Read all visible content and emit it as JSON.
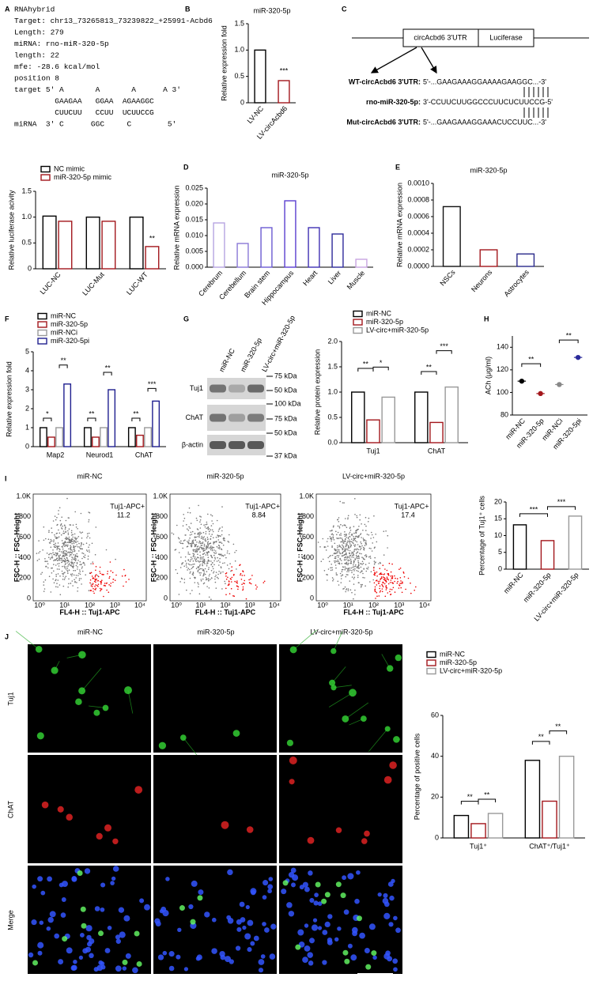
{
  "panel_labels": [
    "A",
    "B",
    "C",
    "D",
    "E",
    "F",
    "G",
    "H",
    "I",
    "J"
  ],
  "rnahybrid": {
    "lines": [
      "RNAhybrid",
      "Target: chr13_73265813_73239822_+25991-Acbd6",
      "Length: 279",
      "miRNA: rno-miR-320-5p",
      "length: 22",
      "mfe: -28.6 kcal/mol",
      "position 8",
      "target 5' A       A       A      A 3'",
      "         GAAGAA   GGAA  AGAAGGC",
      "         CUUCUU   CCUU  UCUUCCG",
      "miRNA  3' C      GGC     C        5'"
    ]
  },
  "construct": {
    "utr_box": "circAcbd6 3'UTR",
    "luc_box": "Luciferase",
    "rows": [
      {
        "label": "WT-circAcbd6 3'UTR:",
        "seq": "5'-...GAAGAAAGGAAAAGAAGGC...-3'"
      },
      {
        "label": "rno-miR-320-5p:",
        "seq": "3'-CCUUCUUGGCCCUUCUCUUCCG-5'"
      },
      {
        "label": "Mut-circAcbd6 3'UTR:",
        "seq": "5'-...GAAGAAAGGAAACUCCUUC...-3'"
      }
    ]
  },
  "blot": {
    "lanes": [
      "miR-NC",
      "miR-320-5p",
      "LV-circ+miR-320-5p"
    ],
    "rows": [
      "Tuj1",
      "ChAT",
      "β-actin"
    ],
    "markers": [
      "75 kDa",
      "50 kDa",
      "100 kDa",
      "75 kDa",
      "50 kDa",
      "37 kDa"
    ]
  },
  "flow": {
    "panels": [
      {
        "title": "miR-NC",
        "gate": "Tuj1-APC+",
        "percent": 11.2
      },
      {
        "title": "miR-320-5p",
        "gate": "Tuj1-APC+",
        "percent": 8.84
      },
      {
        "title": "LV-circ+miR-320-5p",
        "gate": "Tuj1-APC+",
        "percent": 17.4
      }
    ],
    "ylabel": "FSC-H :: FSC-Height",
    "xlabel": "FL4-H :: Tuj1-APC",
    "yticks": [
      "1.0K",
      "800",
      "600",
      "400",
      "200",
      "0"
    ],
    "xticks": [
      "10⁰",
      "10¹",
      "10²",
      "10³",
      "10⁴"
    ]
  },
  "micrographs": {
    "columns": [
      "miR-NC",
      "miR-320-5p",
      "LV-circ+miR-320-5p"
    ],
    "rows": [
      "Tuj1",
      "ChAT",
      "Merge"
    ]
  },
  "chart_data": [
    {
      "type": "bar",
      "title": "miR-320-5p",
      "ylabel": "Relative expression fold",
      "categories": [
        "LV-NC",
        "LV-circAcbd6"
      ],
      "values": [
        1.0,
        0.42
      ],
      "colors": [
        "#000000",
        "#a3171c"
      ],
      "ylim": [
        0,
        1.5
      ],
      "yticks": [
        0,
        0.5,
        {
          "value": 1,
          "label": "1.0"
        },
        1.5
      ],
      "annotations": [
        "***"
      ]
    },
    {
      "type": "bar",
      "ylabel": "Relative luciferase acivity",
      "categories": [
        "LUC-NC",
        "LUC-Mut",
        "LUC-WT"
      ],
      "series": [
        {
          "name": "NC mimic",
          "color": "#000000",
          "values": [
            1.02,
            1.0,
            1.0
          ]
        },
        {
          "name": "miR-320-5p mimic",
          "color": "#a3171c",
          "values": [
            0.92,
            0.92,
            0.43
          ]
        }
      ],
      "ylim": [
        0,
        1.5
      ],
      "yticks": [
        0,
        0.5,
        {
          "value": 1,
          "label": "1.0"
        },
        1.5
      ],
      "annotations": [
        "**"
      ]
    },
    {
      "type": "bar",
      "title": "miR-320-5p",
      "ylabel": "Relative mRNA expression",
      "categories": [
        "Cerebrum",
        "Cerebellum",
        "Brain stem",
        "Hippocampus",
        "Heart",
        "Liver",
        "Muscle"
      ],
      "values": [
        0.014,
        0.0075,
        0.0125,
        0.021,
        0.0125,
        0.0105,
        0.0025
      ],
      "colors": [
        "#b6a4e2",
        "#8a78d6",
        "#6b5bd2",
        "#5a3ecf",
        "#3f30b3",
        "#2e2a9a",
        "#c8a4e0"
      ],
      "ylim": [
        0,
        0.025
      ],
      "yticks": [
        {
          "value": 0,
          "label": "0.000"
        },
        0.005,
        {
          "value": 0.01,
          "label": "0.010"
        },
        0.015,
        {
          "value": 0.02,
          "label": "0.020"
        },
        0.025
      ]
    },
    {
      "type": "bar",
      "title": "miR-320-5p",
      "ylabel": "Relative mRNA expression",
      "categories": [
        "NSCs",
        "Neurons",
        "Astrocytes"
      ],
      "values": [
        0.00072,
        0.0002,
        0.00015
      ],
      "colors": [
        "#111111",
        "#a3171c",
        "#2a2a8a"
      ],
      "ylim": [
        0,
        0.001
      ],
      "yticks": [
        {
          "value": 0,
          "label": "0.0000"
        },
        0.0002,
        0.0004,
        0.0006,
        0.0008,
        {
          "value": 0.001,
          "label": "0.0010"
        }
      ]
    },
    {
      "type": "bar",
      "ylabel": "Relative expression fold",
      "categories": [
        "Map2",
        "Neurod1",
        "ChAT"
      ],
      "series": [
        {
          "name": "miR-NC",
          "color": "#000000",
          "values": [
            1.0,
            1.0,
            1.0
          ]
        },
        {
          "name": "miR-320-5p",
          "color": "#a3171c",
          "values": [
            0.5,
            0.5,
            0.6
          ]
        },
        {
          "name": "miR-NCi",
          "color": "#999999",
          "values": [
            1.0,
            1.0,
            1.0
          ]
        },
        {
          "name": "miR-320-5pi",
          "color": "#1f1f8f",
          "values": [
            3.3,
            3.0,
            2.4
          ]
        }
      ],
      "ylim": [
        0,
        5
      ],
      "yticks": [
        0,
        1,
        2,
        3,
        4,
        5
      ],
      "annotations": [
        "*",
        "**",
        "**",
        "**",
        "**",
        "***"
      ]
    },
    {
      "type": "bar",
      "ylabel": "Relative protein expression",
      "categories": [
        "Tuj1",
        "ChAT"
      ],
      "series": [
        {
          "name": "miR-NC",
          "color": "#000000",
          "values": [
            1.0,
            1.0
          ]
        },
        {
          "name": "miR-320-5p",
          "color": "#a3171c",
          "values": [
            0.45,
            0.4
          ]
        },
        {
          "name": "LV-circ+miR-320-5p",
          "color": "#999999",
          "values": [
            0.9,
            1.1
          ]
        }
      ],
      "ylim": [
        0,
        2
      ],
      "yticks": [
        {
          "value": 0,
          "label": "0.0"
        },
        0.5,
        {
          "value": 1,
          "label": "1.0"
        },
        1.5,
        {
          "value": 2,
          "label": "2.0"
        }
      ],
      "annotations": [
        "**",
        "*",
        "**",
        "***"
      ]
    },
    {
      "type": "dot",
      "ylabel": "ACh (μg/ml)",
      "categories": [
        "miR-NC",
        "miR-320-5p",
        "miR-NCi",
        "miR-320-5pi"
      ],
      "values": [
        110,
        99,
        107,
        131
      ],
      "colors": [
        "#000000",
        "#a3171c",
        "#888888",
        "#2a2a9a"
      ],
      "ylim": [
        80,
        150
      ],
      "yticks": [
        80,
        100,
        120,
        140
      ],
      "annotations": [
        "**",
        "**"
      ]
    },
    {
      "type": "bar",
      "ylabel": "Percentage of Tuj1⁺ cells",
      "categories": [
        "miR-NC",
        "miR-320-5p",
        "LV-circ+miR-320-5p"
      ],
      "values": [
        13.2,
        8.5,
        15.8
      ],
      "colors": [
        "#000000",
        "#a3171c",
        "#999999"
      ],
      "ylim": [
        0,
        20
      ],
      "yticks": [
        0,
        5,
        10,
        15,
        20
      ],
      "annotations": [
        "***",
        "***"
      ]
    },
    {
      "type": "bar",
      "ylabel": "Percentage of positive cells",
      "categories": [
        "Tuj1⁺",
        "ChAT⁺/Tuj1⁺"
      ],
      "series": [
        {
          "name": "miR-NC",
          "color": "#000000",
          "values": [
            11,
            38
          ]
        },
        {
          "name": "miR-320-5p",
          "color": "#a3171c",
          "values": [
            7,
            18
          ]
        },
        {
          "name": "LV-circ+miR-320-5p",
          "color": "#999999",
          "values": [
            12,
            40
          ]
        }
      ],
      "ylim": [
        0,
        60
      ],
      "yticks": [
        0,
        20,
        40,
        60
      ],
      "annotations": [
        "**",
        "**",
        "**",
        "**"
      ]
    }
  ]
}
